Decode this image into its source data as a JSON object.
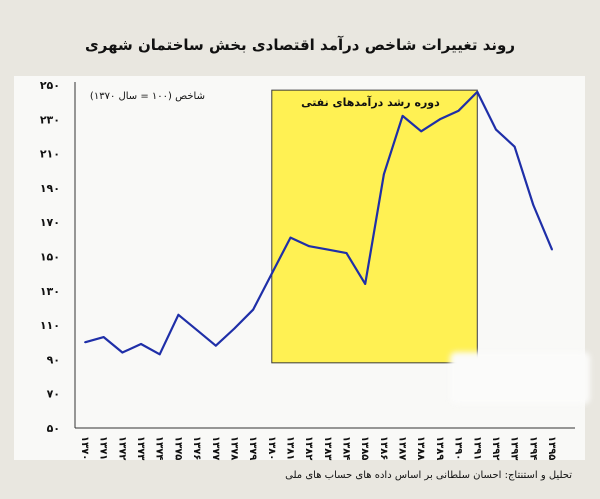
{
  "chart_data": {
    "type": "line",
    "title": "روند تغییرات شاخص درآمد اقتصادی بخش ساختمان شهری",
    "ylabel": "شاخص (۱۰۰ = سال ۱۳۷۰)",
    "source": "تحلیل و استنتاج: احسان سلطانی بر اساس داده های حساب های ملی",
    "categories": [
      "۱۳۷۰",
      "۱۳۷۱",
      "۱۳۷۲",
      "۱۳۷۳",
      "۱۳۷۴",
      "۱۳۷۵",
      "۱۳۷۶",
      "۱۳۷۷",
      "۱۳۷۸",
      "۱۳۷۹",
      "۱۳۸۰",
      "۱۳۸۱",
      "۱۳۸۲",
      "۱۳۸۳",
      "۱۳۸۴",
      "۱۳۸۵",
      "۱۳۸۶",
      "۱۳۸۷",
      "۱۳۸۸",
      "۱۳۸۹",
      "۱۳۹۰",
      "۱۳۹۱",
      "۱۳۹۲",
      "۱۳۹۳",
      "۱۳۹۴",
      "۱۳۹۵"
    ],
    "values": [
      100,
      103,
      94,
      99,
      93,
      116,
      107,
      98,
      108,
      119,
      140,
      161,
      156,
      154,
      152,
      134,
      198,
      232,
      223,
      230,
      235,
      246,
      224,
      214,
      180,
      154
    ],
    "yticks": [
      "۵۰",
      "۷۰",
      "۹۰",
      "۱۱۰",
      "۱۳۰",
      "۱۵۰",
      "۱۷۰",
      "۱۹۰",
      "۲۱۰",
      "۲۳۰",
      "۲۵۰"
    ],
    "ylim": [
      50,
      250
    ],
    "grid": false,
    "line_color": "#1f2fa8",
    "highlight": {
      "label": "دوره رشد درآمدهای نفتی",
      "from": "۱۳۸۰",
      "to": "۱۳۹۱",
      "y_top": 247,
      "color": "#fff153"
    }
  }
}
